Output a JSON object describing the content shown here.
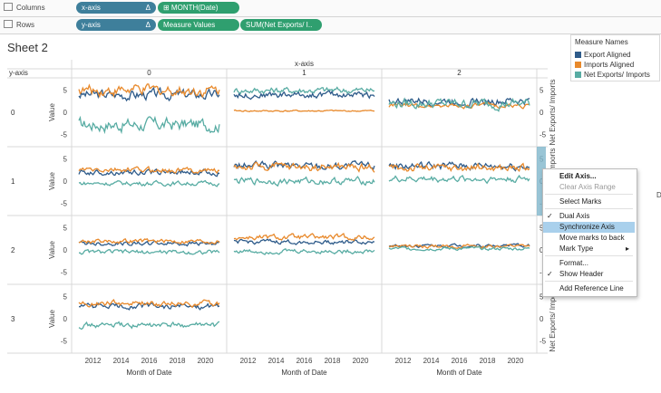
{
  "shelves": {
    "columns_label": "Columns",
    "rows_label": "Rows",
    "columns_pills": [
      {
        "text": "x-axis",
        "delta": "Δ"
      },
      {
        "text": "⊞ MONTH(Date)"
      }
    ],
    "rows_pills": [
      {
        "text": "y-axis",
        "delta": "Δ"
      },
      {
        "text": "Measure Values"
      },
      {
        "text": "SUM(Net Exports/ I.."
      }
    ]
  },
  "sheet_title": "Sheet 2",
  "legend": {
    "title": "Measure Names",
    "items": [
      {
        "label": "Export Aligned",
        "color": "#2e5b8a"
      },
      {
        "label": "Imports Aligned",
        "color": "#e8892b"
      },
      {
        "label": "Net Exports/ Imports",
        "color": "#58aca3"
      }
    ]
  },
  "grid": {
    "col_axis_title": "x-axis",
    "row_axis_title": "y-axis",
    "col_headers": [
      "0",
      "1",
      "2"
    ],
    "row_headers": [
      "0",
      "1",
      "2",
      "3"
    ],
    "value_axis_label": "Value",
    "value_ticks": [
      "5",
      "0",
      "-5"
    ],
    "right_axis_label": "Net Exports/ Imports",
    "right_ticks": [
      "5",
      "0",
      "-5"
    ],
    "x_ticks": [
      "2012",
      "2014",
      "2016",
      "2018",
      "2020"
    ],
    "x_axis_title": "Month of Date",
    "right_edge_letter": "D"
  },
  "chart_data": {
    "type": "line",
    "x_range": [
      2011,
      2021
    ],
    "y_range": [
      -7,
      7
    ],
    "series": [
      {
        "name": "Export Aligned"
      },
      {
        "name": "Imports Aligned"
      },
      {
        "name": "Net Exports/ Imports"
      }
    ],
    "panels": [
      {
        "row": "0",
        "col": "0",
        "levels": [
          4,
          5,
          -2.8
        ],
        "noise": [
          0.9,
          1.0,
          1.2
        ]
      },
      {
        "row": "0",
        "col": "1",
        "levels": [
          4,
          0.3,
          5
        ],
        "noise": [
          0.6,
          0.15,
          0.6
        ]
      },
      {
        "row": "0",
        "col": "2",
        "levels": [
          2.5,
          1.5,
          2
        ],
        "noise": [
          0.7,
          0.4,
          0.9
        ]
      },
      {
        "row": "1",
        "col": "0",
        "levels": [
          2,
          2.5,
          -0.5
        ],
        "noise": [
          0.5,
          0.5,
          0.4
        ]
      },
      {
        "row": "1",
        "col": "1",
        "levels": [
          3.5,
          3.2,
          0
        ],
        "noise": [
          0.7,
          0.7,
          0.6
        ]
      },
      {
        "row": "1",
        "col": "2",
        "levels": [
          3.5,
          3,
          0.5
        ],
        "noise": [
          0.7,
          0.7,
          0.6
        ]
      },
      {
        "row": "2",
        "col": "0",
        "levels": [
          1.5,
          2,
          -0.5
        ],
        "noise": [
          0.4,
          0.4,
          0.4
        ]
      },
      {
        "row": "2",
        "col": "1",
        "levels": [
          1.8,
          2.8,
          -0.3
        ],
        "noise": [
          0.4,
          0.5,
          0.4
        ]
      },
      {
        "row": "2",
        "col": "2",
        "levels": [
          1,
          0.8,
          0.3
        ],
        "noise": [
          0.3,
          0.3,
          0.3
        ]
      },
      {
        "row": "3",
        "col": "0",
        "levels": [
          2.8,
          3.5,
          -1.5
        ],
        "noise": [
          0.5,
          0.5,
          0.5
        ]
      }
    ]
  },
  "context_menu": {
    "items": [
      {
        "label": "Edit Axis...",
        "bold": true
      },
      {
        "label": "Clear Axis Range",
        "disabled": true
      },
      {
        "separator": true
      },
      {
        "label": "Select Marks"
      },
      {
        "separator": true
      },
      {
        "label": "Dual Axis",
        "checked": true
      },
      {
        "label": "Synchronize Axis",
        "highlighted": true
      },
      {
        "label": "Move marks to back"
      },
      {
        "label": "Mark Type",
        "submenu": true
      },
      {
        "separator": true
      },
      {
        "label": "Format..."
      },
      {
        "label": "Show Header",
        "checked": true
      },
      {
        "separator": true
      },
      {
        "label": "Add Reference Line"
      }
    ],
    "check_glyph": "✓",
    "submenu_glyph": "▸"
  }
}
